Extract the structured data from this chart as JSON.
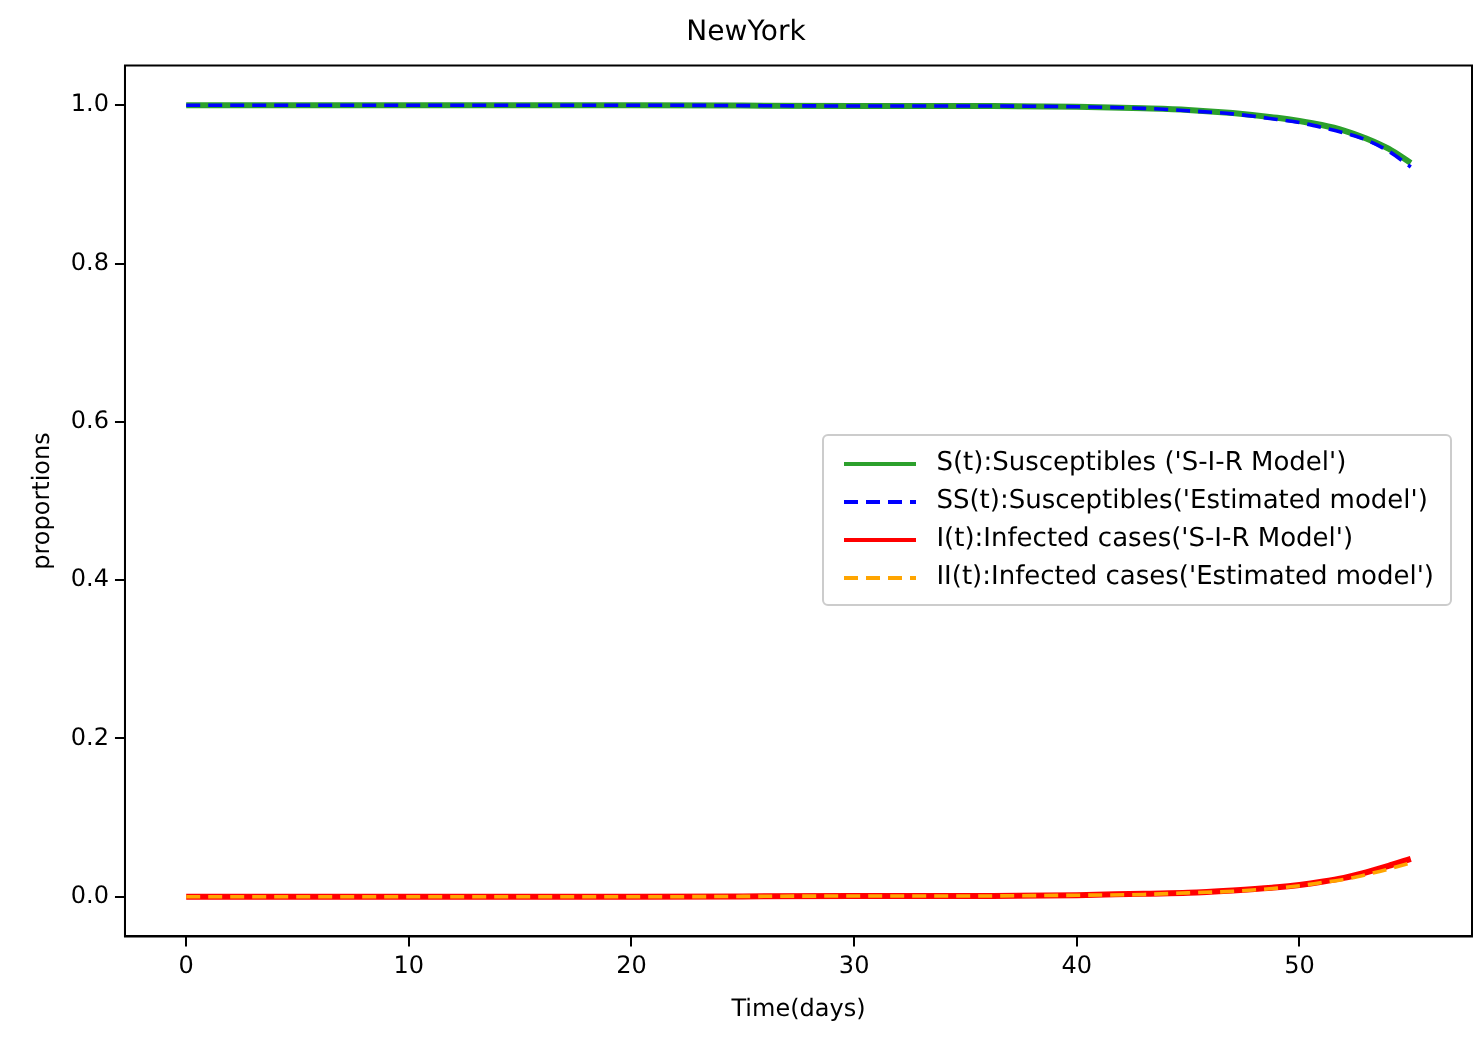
{
  "chart_data": {
    "type": "line",
    "title": "NewYork",
    "xlabel": "Time(days)",
    "ylabel": "proportions",
    "x": [
      0,
      10,
      20,
      30,
      35,
      40,
      43,
      45,
      47,
      49,
      50,
      51,
      52,
      53,
      54,
      55
    ],
    "series": [
      {
        "name": "S(t):Susceptibles ('S-I-R Model')",
        "color": "#2ca02c",
        "line_style": "solid",
        "values": [
          1.0,
          1.0,
          1.0,
          0.999,
          0.999,
          0.998,
          0.996,
          0.994,
          0.99,
          0.984,
          0.98,
          0.975,
          0.968,
          0.958,
          0.945,
          0.927
        ]
      },
      {
        "name": "SS(t):Susceptibles('Estimated model')",
        "color": "#0000ff",
        "line_style": "dashed",
        "values": [
          1.0,
          1.0,
          1.0,
          0.999,
          0.999,
          0.998,
          0.996,
          0.993,
          0.989,
          0.982,
          0.978,
          0.972,
          0.965,
          0.956,
          0.942,
          0.922
        ]
      },
      {
        "name": "I(t):Infected cases('S-I-R Model')",
        "color": "#ff0000",
        "line_style": "solid",
        "values": [
          0,
          0,
          0,
          0.001,
          0.001,
          0.002,
          0.004,
          0.005,
          0.008,
          0.012,
          0.015,
          0.019,
          0.024,
          0.031,
          0.039,
          0.048
        ]
      },
      {
        "name": "II(t):Infected cases('Estimated model')",
        "color": "#ffa500",
        "line_style": "dashed",
        "values": [
          0,
          0,
          0,
          0.001,
          0.001,
          0.002,
          0.003,
          0.005,
          0.007,
          0.011,
          0.014,
          0.018,
          0.022,
          0.028,
          0.035,
          0.043
        ]
      }
    ],
    "xlim": [
      -2.75,
      57.75
    ],
    "xticks": [
      0,
      10,
      20,
      30,
      40,
      50
    ],
    "ylim": [
      -0.05,
      1.05
    ],
    "yticks": [
      {
        "value": 0,
        "label": "0.0"
      },
      {
        "value": 0.2,
        "label": "0.2"
      },
      {
        "value": 0.4,
        "label": "0.4"
      },
      {
        "value": 0.6,
        "label": "0.6"
      },
      {
        "value": 0.8,
        "label": "0.8"
      },
      {
        "value": 1,
        "label": "1.0"
      }
    ],
    "grid": false,
    "legend": "right",
    "marker": "none"
  }
}
